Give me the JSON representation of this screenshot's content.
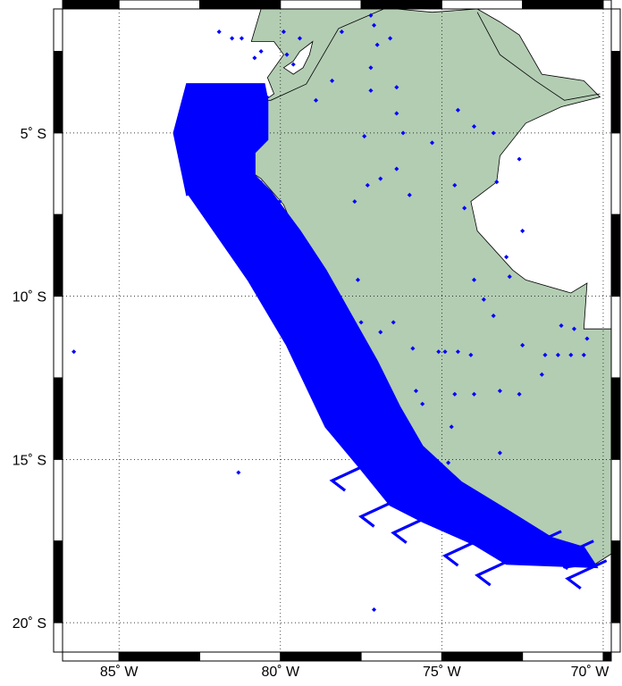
{
  "map": {
    "lon_range": [
      -86.75,
      -69.75
    ],
    "lat_range": [
      -20.9,
      -1.2
    ],
    "lon_ticks": [
      {
        "value": -85,
        "label": "85˚ W"
      },
      {
        "value": -80,
        "label": "80˚ W"
      },
      {
        "value": -75,
        "label": "75˚ W"
      },
      {
        "value": -70,
        "label": "70˚ W"
      }
    ],
    "lat_ticks": [
      {
        "value": -5,
        "label": "5˚ S"
      },
      {
        "value": -10,
        "label": "10˚ S"
      },
      {
        "value": -15,
        "label": "15˚ S"
      },
      {
        "value": -20,
        "label": "20˚ S"
      }
    ],
    "grid": "dotted",
    "frame": "black-white alternating",
    "colors": {
      "land": "#b3cdb3",
      "ocean": "#ffffff",
      "observations": "#0000ff",
      "frame_dark": "#000000",
      "frame_light": "#ffffff"
    },
    "land_outline": [
      [
        -78.0,
        -1.2
      ],
      [
        -76.4,
        -1.2
      ],
      [
        -75.3,
        -1.3
      ],
      [
        -73.9,
        -1.2
      ],
      [
        -73.2,
        -1.6
      ],
      [
        -72.6,
        -2.0
      ],
      [
        -71.9,
        -3.2
      ],
      [
        -70.6,
        -3.4
      ],
      [
        -70.1,
        -3.9
      ],
      [
        -71.3,
        -4.2
      ],
      [
        -72.4,
        -4.7
      ],
      [
        -73.2,
        -5.7
      ],
      [
        -73.3,
        -6.5
      ],
      [
        -74.1,
        -7.1
      ],
      [
        -73.9,
        -8.0
      ],
      [
        -72.8,
        -9.2
      ],
      [
        -72.4,
        -9.5
      ],
      [
        -71.0,
        -9.9
      ],
      [
        -70.5,
        -9.6
      ],
      [
        -70.6,
        -11.0
      ],
      [
        -69.6,
        -11.0
      ],
      [
        -69.6,
        -17.8
      ],
      [
        -70.4,
        -18.3
      ],
      [
        -71.4,
        -17.6
      ],
      [
        -72.4,
        -17.0
      ],
      [
        -74.0,
        -16.0
      ],
      [
        -75.1,
        -15.3
      ],
      [
        -76.1,
        -14.2
      ],
      [
        -76.4,
        -13.4
      ],
      [
        -77.1,
        -12.2
      ],
      [
        -77.7,
        -11.0
      ],
      [
        -78.3,
        -10.0
      ],
      [
        -78.9,
        -9.0
      ],
      [
        -79.5,
        -8.1
      ],
      [
        -79.9,
        -7.2
      ],
      [
        -80.6,
        -6.4
      ],
      [
        -81.2,
        -6.0
      ],
      [
        -80.9,
        -5.4
      ],
      [
        -81.1,
        -4.6
      ],
      [
        -80.9,
        -4.3
      ],
      [
        -80.2,
        -3.8
      ],
      [
        -80.4,
        -3.3
      ],
      [
        -79.9,
        -2.6
      ],
      [
        -80.2,
        -2.2
      ],
      [
        -80.9,
        -2.2
      ],
      [
        -80.6,
        -1.2
      ]
    ],
    "neighbor_coasts": [
      [
        [
          -76.8,
          -1.2
        ],
        [
          -78.2,
          -1.8
        ],
        [
          -79.2,
          -3.5
        ],
        [
          -80.3,
          -4.0
        ],
        [
          -80.8,
          -4.0
        ]
      ],
      [
        [
          -73.9,
          -1.3
        ],
        [
          -73.2,
          -2.6
        ],
        [
          -72.1,
          -3.4
        ],
        [
          -71.2,
          -4.0
        ],
        [
          -70.1,
          -3.8
        ]
      ]
    ],
    "island": [
      [
        -79.0,
        -2.2
      ],
      [
        -79.4,
        -2.5
      ],
      [
        -79.6,
        -2.8
      ],
      [
        -79.9,
        -3.0
      ],
      [
        -79.6,
        -3.2
      ],
      [
        -79.3,
        -3.0
      ],
      [
        -79.1,
        -2.6
      ]
    ],
    "track_segments": [
      [
        [
          -80.5,
          -3.6
        ],
        [
          -82.7,
          -3.8
        ],
        [
          -80.4,
          -3.9
        ],
        [
          -82.8,
          -4.3
        ],
        [
          -80.5,
          -4.6
        ],
        [
          -82.9,
          -4.9
        ],
        [
          -81.1,
          -5.1
        ],
        [
          -83.2,
          -5.0
        ],
        [
          -81.0,
          -5.5
        ],
        [
          -82.6,
          -5.8
        ],
        [
          -80.9,
          -5.9
        ]
      ],
      [
        [
          -81.1,
          -5.6
        ],
        [
          -82.8,
          -6.6
        ],
        [
          -80.6,
          -6.5
        ],
        [
          -82.3,
          -7.2
        ],
        [
          -80.0,
          -7.1
        ],
        [
          -81.8,
          -7.9
        ],
        [
          -79.6,
          -7.8
        ],
        [
          -81.3,
          -8.5
        ],
        [
          -79.2,
          -8.6
        ],
        [
          -80.9,
          -9.4
        ],
        [
          -78.8,
          -9.3
        ]
      ],
      [
        [
          -79.0,
          -9.2
        ],
        [
          -80.2,
          -10.2
        ],
        [
          -78.4,
          -10.1
        ],
        [
          -79.8,
          -11.1
        ],
        [
          -77.9,
          -11.0
        ],
        [
          -79.3,
          -12.0
        ],
        [
          -77.5,
          -11.9
        ],
        [
          -78.8,
          -12.9
        ],
        [
          -77.1,
          -12.8
        ],
        [
          -78.5,
          -13.9
        ],
        [
          -76.6,
          -13.6
        ]
      ],
      [
        [
          -76.7,
          -13.7
        ],
        [
          -77.7,
          -14.6
        ],
        [
          -76.0,
          -14.3
        ],
        [
          -77.2,
          -15.3
        ],
        [
          -75.5,
          -14.9
        ],
        [
          -76.4,
          -15.8
        ],
        [
          -74.8,
          -15.4
        ],
        [
          -75.4,
          -16.6
        ],
        [
          -74.0,
          -16.1
        ],
        [
          -74.6,
          -17.0
        ],
        [
          -73.2,
          -16.6
        ]
      ],
      [
        [
          -73.3,
          -16.6
        ],
        [
          -73.7,
          -17.6
        ],
        [
          -72.6,
          -17.1
        ],
        [
          -72.8,
          -18.1
        ],
        [
          -71.8,
          -17.5
        ],
        [
          -71.9,
          -18.2
        ],
        [
          -71.0,
          -17.9
        ],
        [
          -71.2,
          -18.3
        ],
        [
          -70.4,
          -18.2
        ]
      ]
    ],
    "track_bands": [
      [
        [
          -80.5,
          -3.5
        ],
        [
          -82.9,
          -3.5
        ],
        [
          -83.3,
          -5.0
        ],
        [
          -82.9,
          -6.9
        ],
        [
          -80.8,
          -6.3
        ],
        [
          -80.8,
          -5.6
        ],
        [
          -80.4,
          -5.2
        ],
        [
          -80.4,
          -4.0
        ]
      ],
      [
        [
          -81.3,
          -5.8
        ],
        [
          -82.9,
          -6.8
        ],
        [
          -81.0,
          -9.5
        ],
        [
          -79.8,
          -11.5
        ],
        [
          -78.6,
          -14.0
        ],
        [
          -77.5,
          -15.3
        ],
        [
          -76.6,
          -16.4
        ],
        [
          -75.6,
          -16.9
        ],
        [
          -74.0,
          -17.6
        ],
        [
          -73.0,
          -18.2
        ],
        [
          -70.2,
          -18.3
        ],
        [
          -70.6,
          -17.7
        ],
        [
          -71.6,
          -17.4
        ],
        [
          -72.9,
          -16.6
        ],
        [
          -74.4,
          -15.7
        ],
        [
          -75.6,
          -14.6
        ],
        [
          -76.3,
          -13.4
        ],
        [
          -77.0,
          -12.0
        ],
        [
          -77.8,
          -10.6
        ],
        [
          -78.6,
          -9.2
        ],
        [
          -79.4,
          -8.0
        ],
        [
          -80.3,
          -6.8
        ]
      ]
    ],
    "stray_points": [
      [
        -86.4,
        -11.7
      ],
      [
        -81.3,
        -15.4
      ],
      [
        -77.1,
        -19.6
      ],
      [
        -83.0,
        -4.3
      ],
      [
        -80.8,
        -2.7
      ],
      [
        -79.6,
        -2.9
      ],
      [
        -81.9,
        -1.9
      ],
      [
        -81.5,
        -2.1
      ],
      [
        -81.2,
        -2.1
      ],
      [
        -80.6,
        -2.5
      ],
      [
        -79.8,
        -2.6
      ],
      [
        -79.9,
        -1.9
      ],
      [
        -79.4,
        -2.1
      ],
      [
        -78.1,
        -1.9
      ],
      [
        -77.2,
        -1.4
      ],
      [
        -77.1,
        -1.7
      ],
      [
        -77.0,
        -2.3
      ],
      [
        -76.6,
        -2.1
      ],
      [
        -77.2,
        -3.0
      ],
      [
        -78.4,
        -3.4
      ],
      [
        -77.2,
        -3.7
      ],
      [
        -76.4,
        -3.6
      ],
      [
        -78.9,
        -4.0
      ],
      [
        -76.4,
        -4.4
      ],
      [
        -77.4,
        -5.1
      ],
      [
        -76.2,
        -5.0
      ],
      [
        -74.5,
        -4.3
      ],
      [
        -74.0,
        -4.8
      ],
      [
        -73.4,
        -5.0
      ],
      [
        -75.3,
        -5.3
      ],
      [
        -76.9,
        -6.4
      ],
      [
        -76.4,
        -6.1
      ],
      [
        -76.0,
        -6.9
      ],
      [
        -77.3,
        -6.6
      ],
      [
        -77.7,
        -7.1
      ],
      [
        -77.6,
        -9.5
      ],
      [
        -77.5,
        -10.8
      ],
      [
        -76.9,
        -11.1
      ],
      [
        -76.5,
        -10.8
      ],
      [
        -75.9,
        -11.6
      ],
      [
        -75.1,
        -11.7
      ],
      [
        -74.9,
        -11.7
      ],
      [
        -74.5,
        -11.7
      ],
      [
        -74.1,
        -11.8
      ],
      [
        -74.6,
        -13.0
      ],
      [
        -74.0,
        -13.0
      ],
      [
        -73.2,
        -12.9
      ],
      [
        -72.6,
        -13.0
      ],
      [
        -71.9,
        -12.4
      ],
      [
        -70.5,
        -11.3
      ],
      [
        -71.8,
        -11.8
      ],
      [
        -71.4,
        -11.8
      ],
      [
        -71.0,
        -11.8
      ],
      [
        -70.6,
        -11.8
      ],
      [
        -73.7,
        -10.1
      ],
      [
        -73.4,
        -10.6
      ],
      [
        -72.5,
        -11.5
      ],
      [
        -70.9,
        -11.0
      ],
      [
        -71.3,
        -10.9
      ],
      [
        -75.8,
        -12.9
      ],
      [
        -75.6,
        -13.3
      ],
      [
        -74.7,
        -14.0
      ],
      [
        -74.8,
        -15.1
      ],
      [
        -73.2,
        -14.8
      ],
      [
        -74.3,
        -7.3
      ],
      [
        -74.6,
        -6.6
      ],
      [
        -72.5,
        -8.0
      ],
      [
        -73.0,
        -8.8
      ],
      [
        -72.9,
        -9.4
      ],
      [
        -72.6,
        -5.8
      ],
      [
        -73.3,
        -6.5
      ],
      [
        -74.0,
        -9.5
      ]
    ]
  }
}
